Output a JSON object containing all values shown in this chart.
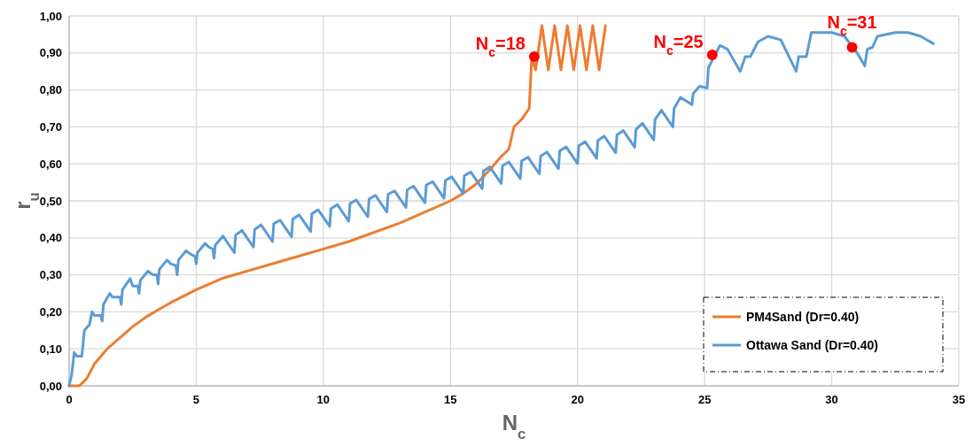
{
  "chart_data": {
    "type": "line",
    "xlabel": "N$_{c}$",
    "ylabel": "r$_{u}$",
    "xlim": [
      0,
      35
    ],
    "ylim": [
      0,
      1
    ],
    "xticks": [
      0,
      5,
      10,
      15,
      20,
      25,
      30,
      35
    ],
    "yticks": [
      {
        "value": 0,
        "label": "0,00"
      },
      {
        "value": 0.1,
        "label": "0,10"
      },
      {
        "value": 0.2,
        "label": "0,20"
      },
      {
        "value": 0.3,
        "label": "0,30"
      },
      {
        "value": 0.4,
        "label": "0,40"
      },
      {
        "value": 0.5,
        "label": "0,50"
      },
      {
        "value": 0.6,
        "label": "0,60"
      },
      {
        "value": 0.7,
        "label": "0,70"
      },
      {
        "value": 0.8,
        "label": "0,80"
      },
      {
        "value": 0.9,
        "label": "0,90"
      },
      {
        "value": 1,
        "label": "1,00"
      }
    ],
    "grid": true,
    "legend": "bottom right",
    "line_style": "solid",
    "marker": "none",
    "series": [
      {
        "name": "PM4Sand (Dr=0.40)",
        "color": "#ed7d31",
        "x": [
          0,
          0.4,
          0.7,
          1.0,
          1.5,
          2,
          2.5,
          3,
          3.5,
          4,
          5,
          6,
          7,
          8,
          9,
          10,
          11,
          12,
          13,
          14,
          15,
          15.5,
          16,
          16.5,
          17,
          17.3,
          17.5,
          17.8,
          18.1,
          18.2,
          18.35,
          18.6,
          18.85,
          19.1,
          19.35,
          19.6,
          19.85,
          20.1,
          20.35,
          20.6,
          20.85,
          21.1
        ],
        "values": [
          0,
          0,
          0.02,
          0.06,
          0.1,
          0.13,
          0.16,
          0.185,
          0.205,
          0.225,
          0.26,
          0.29,
          0.31,
          0.33,
          0.35,
          0.37,
          0.39,
          0.415,
          0.44,
          0.47,
          0.5,
          0.52,
          0.545,
          0.58,
          0.62,
          0.64,
          0.7,
          0.72,
          0.75,
          0.89,
          0.854,
          0.974,
          0.854,
          0.974,
          0.854,
          0.974,
          0.854,
          0.974,
          0.854,
          0.974,
          0.854,
          0.974
        ]
      },
      {
        "name": "Ottawa Sand (Dr=0.40)",
        "color": "#5b9bd5",
        "x": [
          0,
          0.1,
          0.2,
          0.3,
          0.5,
          0.6,
          0.8,
          0.9,
          1.0,
          1.25,
          1.3,
          1.35,
          1.6,
          1.7,
          2.0,
          2.05,
          2.1,
          2.4,
          2.5,
          2.7,
          2.75,
          2.8,
          3.1,
          3.3,
          3.45,
          3.5,
          3.55,
          3.85,
          4.0,
          4.2,
          4.25,
          4.3,
          4.6,
          4.8,
          4.95,
          5.0,
          5.05,
          5.35,
          5.5,
          5.65,
          5.7,
          5.75,
          6.05,
          6.5,
          6.55,
          6.8,
          7.25,
          7.3,
          7.55,
          8.0,
          8.05,
          8.3,
          8.75,
          8.8,
          9.05,
          9.5,
          9.55,
          9.8,
          10.25,
          10.3,
          10.55,
          11.0,
          11.05,
          11.3,
          11.75,
          11.8,
          12.05,
          12.5,
          12.55,
          12.8,
          13.25,
          13.3,
          13.55,
          14.0,
          14.05,
          14.3,
          14.75,
          14.8,
          15.05,
          15.5,
          15.55,
          15.8,
          16.25,
          16.3,
          16.55,
          17.0,
          17.05,
          17.3,
          17.75,
          17.8,
          18.05,
          18.5,
          18.55,
          18.8,
          19.25,
          19.3,
          19.55,
          20.0,
          20.05,
          20.3,
          20.75,
          20.8,
          21.05,
          21.5,
          21.55,
          21.8,
          22.25,
          22.3,
          22.55,
          23.0,
          23.05,
          23.3,
          23.75,
          23.8,
          24.05,
          24.5,
          24.55,
          24.8,
          25.1,
          25.15,
          25.3,
          25.6,
          25.9,
          26.4,
          26.6,
          26.8,
          27.1,
          27.5,
          28.0,
          28.6,
          28.7,
          29.0,
          29.2,
          30.0,
          30.5,
          31.0,
          31.3,
          31.4,
          31.6,
          31.8,
          32.5,
          33.0,
          33.5,
          34.0
        ],
        "values": [
          0,
          0.03,
          0.09,
          0.08,
          0.08,
          0.15,
          0.165,
          0.2,
          0.19,
          0.19,
          0.175,
          0.22,
          0.25,
          0.24,
          0.24,
          0.22,
          0.26,
          0.29,
          0.27,
          0.27,
          0.25,
          0.285,
          0.31,
          0.3,
          0.3,
          0.275,
          0.315,
          0.34,
          0.33,
          0.325,
          0.3,
          0.34,
          0.365,
          0.355,
          0.35,
          0.33,
          0.36,
          0.385,
          0.375,
          0.37,
          0.345,
          0.38,
          0.405,
          0.36,
          0.408,
          0.42,
          0.375,
          0.423,
          0.435,
          0.39,
          0.438,
          0.448,
          0.403,
          0.451,
          0.462,
          0.417,
          0.465,
          0.476,
          0.431,
          0.479,
          0.49,
          0.445,
          0.493,
          0.502,
          0.457,
          0.505,
          0.515,
          0.47,
          0.518,
          0.527,
          0.482,
          0.53,
          0.54,
          0.495,
          0.543,
          0.552,
          0.507,
          0.555,
          0.565,
          0.52,
          0.568,
          0.578,
          0.533,
          0.581,
          0.592,
          0.547,
          0.595,
          0.605,
          0.56,
          0.608,
          0.618,
          0.573,
          0.621,
          0.632,
          0.587,
          0.635,
          0.646,
          0.601,
          0.649,
          0.66,
          0.615,
          0.663,
          0.675,
          0.63,
          0.678,
          0.69,
          0.645,
          0.693,
          0.71,
          0.665,
          0.72,
          0.745,
          0.7,
          0.75,
          0.78,
          0.76,
          0.79,
          0.81,
          0.805,
          0.86,
          0.88,
          0.92,
          0.91,
          0.85,
          0.89,
          0.89,
          0.93,
          0.945,
          0.935,
          0.85,
          0.89,
          0.89,
          0.955,
          0.955,
          0.945,
          0.9,
          0.865,
          0.91,
          0.915,
          0.945,
          0.955,
          0.955,
          0.945,
          0.925
        ]
      },
      {
        "type": "scatter",
        "color": "#ff0000",
        "marker": "circle",
        "x": [
          18.3,
          25.3,
          30.8
        ],
        "values": [
          0.89,
          0.895,
          0.915
        ]
      }
    ],
    "annotations": [
      {
        "text": "N$_{c}$=18",
        "x": 18.3,
        "y": 0.89
      },
      {
        "text": "N$_{c}$=25",
        "x": 25.3,
        "y": 0.895
      },
      {
        "text": "N$_{c}$=31",
        "x": 30.8,
        "y": 0.915
      }
    ]
  }
}
